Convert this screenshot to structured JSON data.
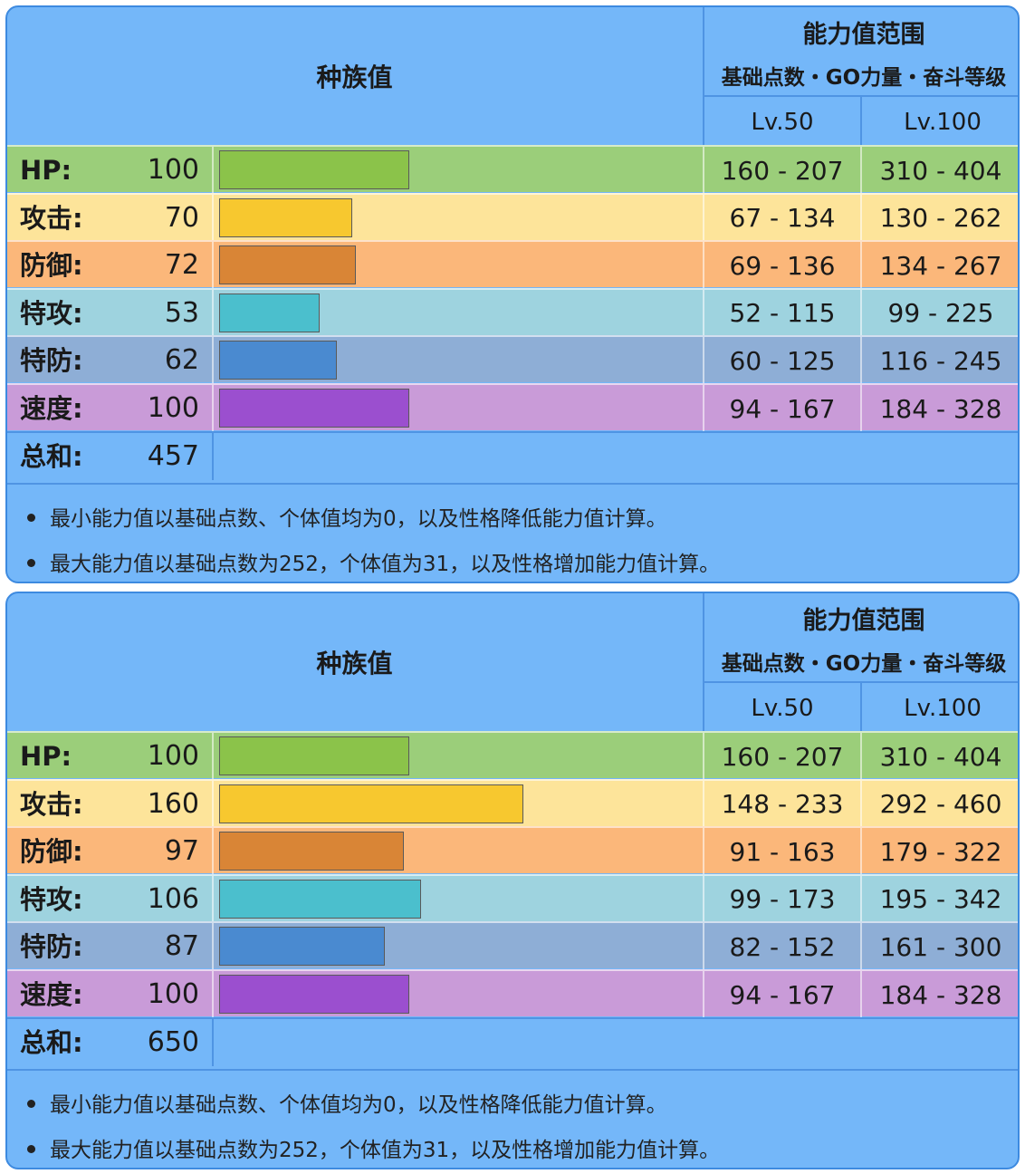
{
  "header": {
    "base_stats_title": "种族值",
    "range_title": "能力值范围",
    "range_subtitle": "基础点数・GO力量・奋斗等级",
    "lv50": "Lv.50",
    "lv100": "Lv.100"
  },
  "notes": [
    "最小能力值以基础点数、个体值均为0，以及性格降低能力值计算。",
    "最大能力值以基础点数为252，个体值为31，以及性格增加能力值计算。"
  ],
  "colors": {
    "hp": {
      "row": "#9bce7a",
      "bar": "#8bc34a"
    },
    "attack": {
      "row": "#fde49a",
      "bar": "#f7c82f"
    },
    "defense": {
      "row": "#fbb77a",
      "bar": "#d98536"
    },
    "sp_attack": {
      "row": "#9ed3df",
      "bar": "#4bbfcd"
    },
    "sp_defense": {
      "row": "#8eaed6",
      "bar": "#4a8ad0"
    },
    "speed": {
      "row": "#c99bd8",
      "bar": "#9b4fcf"
    },
    "total": {
      "row": "#74b7f9"
    }
  },
  "panels": [
    {
      "stats": [
        {
          "key": "hp",
          "label": "HP:",
          "value": "100",
          "base": 100,
          "lv50": "160 - 207",
          "lv100": "310 - 404"
        },
        {
          "key": "attack",
          "label": "攻击:",
          "value": "70",
          "base": 70,
          "lv50": "67 - 134",
          "lv100": "130 - 262"
        },
        {
          "key": "defense",
          "label": "防御:",
          "value": "72",
          "base": 72,
          "lv50": "69 - 136",
          "lv100": "134 - 267"
        },
        {
          "key": "sp_attack",
          "label": "特攻:",
          "value": "53",
          "base": 53,
          "lv50": "52 - 115",
          "lv100": "99 - 225"
        },
        {
          "key": "sp_defense",
          "label": "特防:",
          "value": "62",
          "base": 62,
          "lv50": "60 - 125",
          "lv100": "116 - 245"
        },
        {
          "key": "speed",
          "label": "速度:",
          "value": "100",
          "base": 100,
          "lv50": "94 - 167",
          "lv100": "184 - 328"
        }
      ],
      "total": {
        "label": "总和:",
        "value": "457"
      }
    },
    {
      "stats": [
        {
          "key": "hp",
          "label": "HP:",
          "value": "100",
          "base": 100,
          "lv50": "160 - 207",
          "lv100": "310 - 404"
        },
        {
          "key": "attack",
          "label": "攻击:",
          "value": "160",
          "base": 160,
          "lv50": "148 - 233",
          "lv100": "292 - 460"
        },
        {
          "key": "defense",
          "label": "防御:",
          "value": "97",
          "base": 97,
          "lv50": "91 - 163",
          "lv100": "179 - 322"
        },
        {
          "key": "sp_attack",
          "label": "特攻:",
          "value": "106",
          "base": 106,
          "lv50": "99 - 173",
          "lv100": "195 - 342"
        },
        {
          "key": "sp_defense",
          "label": "特防:",
          "value": "87",
          "base": 87,
          "lv50": "82 - 152",
          "lv100": "161 - 300"
        },
        {
          "key": "speed",
          "label": "速度:",
          "value": "100",
          "base": 100,
          "lv50": "94 - 167",
          "lv100": "184 - 328"
        }
      ],
      "total": {
        "label": "总和:",
        "value": "650"
      }
    }
  ]
}
